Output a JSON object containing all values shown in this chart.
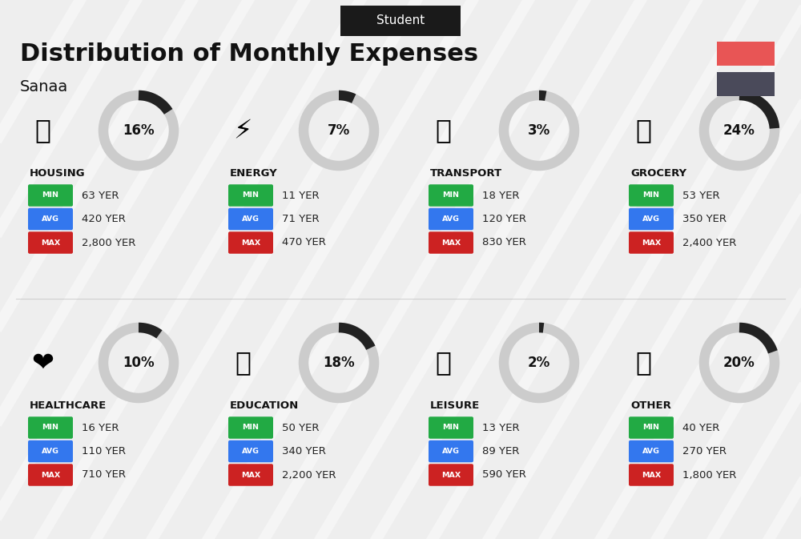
{
  "title": "Distribution of Monthly Expenses",
  "subtitle": "Sanaa",
  "header_label": "Student",
  "background_color": "#eeeeee",
  "header_bg": "#1a1a1a",
  "header_text_color": "#ffffff",
  "red_swatch": "#e85555",
  "dark_swatch": "#4a4a5a",
  "categories": [
    {
      "name": "HOUSING",
      "percent": 16,
      "min_val": "63 YER",
      "avg_val": "420 YER",
      "max_val": "2,800 YER",
      "col": 0,
      "row": 0
    },
    {
      "name": "ENERGY",
      "percent": 7,
      "min_val": "11 YER",
      "avg_val": "71 YER",
      "max_val": "470 YER",
      "col": 1,
      "row": 0
    },
    {
      "name": "TRANSPORT",
      "percent": 3,
      "min_val": "18 YER",
      "avg_val": "120 YER",
      "max_val": "830 YER",
      "col": 2,
      "row": 0
    },
    {
      "name": "GROCERY",
      "percent": 24,
      "min_val": "53 YER",
      "avg_val": "350 YER",
      "max_val": "2,400 YER",
      "col": 3,
      "row": 0
    },
    {
      "name": "HEALTHCARE",
      "percent": 10,
      "min_val": "16 YER",
      "avg_val": "110 YER",
      "max_val": "710 YER",
      "col": 0,
      "row": 1
    },
    {
      "name": "EDUCATION",
      "percent": 18,
      "min_val": "50 YER",
      "avg_val": "340 YER",
      "max_val": "2,200 YER",
      "col": 1,
      "row": 1
    },
    {
      "name": "LEISURE",
      "percent": 2,
      "min_val": "13 YER",
      "avg_val": "89 YER",
      "max_val": "590 YER",
      "col": 2,
      "row": 1
    },
    {
      "name": "OTHER",
      "percent": 20,
      "min_val": "40 YER",
      "avg_val": "270 YER",
      "max_val": "1,800 YER",
      "col": 3,
      "row": 1
    }
  ],
  "min_color": "#22aa44",
  "avg_color": "#3377ee",
  "max_color": "#cc2222",
  "label_text_color": "#ffffff",
  "value_text_color": "#222222",
  "category_text_color": "#111111",
  "donut_bg_color": "#cccccc",
  "donut_fg_color": "#222222"
}
